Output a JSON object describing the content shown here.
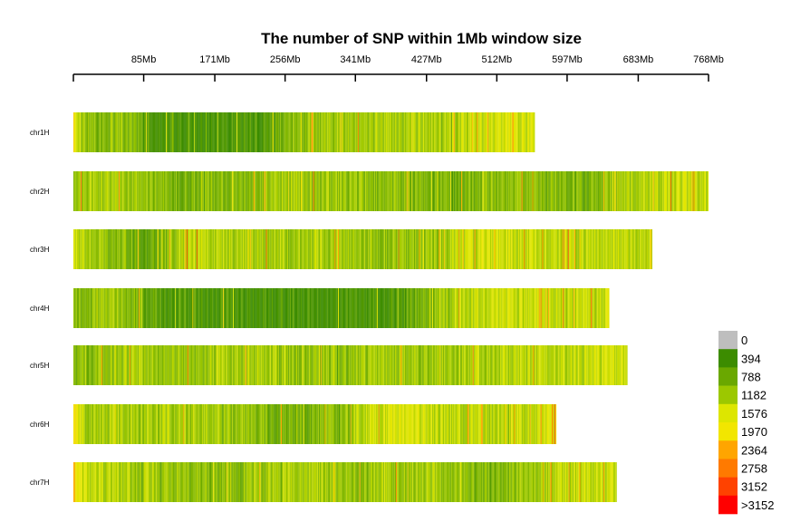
{
  "chart_data": {
    "type": "heatmap",
    "title": "The number of SNP within 1Mb window size",
    "x_axis": {
      "unit": "Mb",
      "range": [
        0,
        768
      ],
      "ticks": [
        {
          "value": 85,
          "label": "85Mb"
        },
        {
          "value": 171,
          "label": "171Mb"
        },
        {
          "value": 256,
          "label": "256Mb"
        },
        {
          "value": 341,
          "label": "341Mb"
        },
        {
          "value": 427,
          "label": "427Mb"
        },
        {
          "value": 512,
          "label": "512Mb"
        },
        {
          "value": 597,
          "label": "597Mb"
        },
        {
          "value": 683,
          "label": "683Mb"
        },
        {
          "value": 768,
          "label": "768Mb"
        }
      ]
    },
    "window_size_mb": 1,
    "chromosomes": [
      {
        "name": "chr1H",
        "length_mb": 558,
        "profile": [
          [
            0,
            1900
          ],
          [
            10,
            1180
          ],
          [
            30,
            1000
          ],
          [
            55,
            1180
          ],
          [
            100,
            400
          ],
          [
            170,
            420
          ],
          [
            230,
            560
          ],
          [
            265,
            1060
          ],
          [
            330,
            1180
          ],
          [
            420,
            1300
          ],
          [
            490,
            1400
          ],
          [
            510,
            1580
          ],
          [
            558,
            1500
          ]
        ]
      },
      {
        "name": "chr2H",
        "length_mb": 768,
        "profile": [
          [
            0,
            1200
          ],
          [
            60,
            1180
          ],
          [
            120,
            900
          ],
          [
            180,
            1000
          ],
          [
            260,
            1200
          ],
          [
            340,
            1100
          ],
          [
            410,
            980
          ],
          [
            460,
            800
          ],
          [
            500,
            1000
          ],
          [
            560,
            1060
          ],
          [
            620,
            900
          ],
          [
            690,
            1350
          ],
          [
            768,
            1450
          ]
        ]
      },
      {
        "name": "chr3H",
        "length_mb": 700,
        "profile": [
          [
            0,
            1500
          ],
          [
            20,
            1180
          ],
          [
            60,
            1000
          ],
          [
            90,
            700
          ],
          [
            110,
            1000
          ],
          [
            140,
            1400
          ],
          [
            200,
            1300
          ],
          [
            260,
            1200
          ],
          [
            320,
            1250
          ],
          [
            370,
            1100
          ],
          [
            420,
            1000
          ],
          [
            480,
            1450
          ],
          [
            530,
            1500
          ],
          [
            600,
            1350
          ],
          [
            700,
            1400
          ]
        ]
      },
      {
        "name": "chr4H",
        "length_mb": 648,
        "profile": [
          [
            0,
            1100
          ],
          [
            20,
            950
          ],
          [
            50,
            1300
          ],
          [
            90,
            700
          ],
          [
            140,
            500
          ],
          [
            300,
            420
          ],
          [
            380,
            520
          ],
          [
            430,
            900
          ],
          [
            460,
            1300
          ],
          [
            520,
            1500
          ],
          [
            600,
            1400
          ],
          [
            648,
            1500
          ]
        ]
      },
      {
        "name": "chr5H",
        "length_mb": 670,
        "profile": [
          [
            0,
            1000
          ],
          [
            60,
            1180
          ],
          [
            130,
            1100
          ],
          [
            200,
            1250
          ],
          [
            260,
            1150
          ],
          [
            320,
            1000
          ],
          [
            380,
            1200
          ],
          [
            440,
            1150
          ],
          [
            500,
            1300
          ],
          [
            580,
            1350
          ],
          [
            640,
            1450
          ],
          [
            670,
            1500
          ]
        ]
      },
      {
        "name": "chr6H",
        "length_mb": 584,
        "profile": [
          [
            0,
            2000
          ],
          [
            15,
            1200
          ],
          [
            60,
            1300
          ],
          [
            130,
            1250
          ],
          [
            200,
            1100
          ],
          [
            270,
            800
          ],
          [
            330,
            1050
          ],
          [
            360,
            1500
          ],
          [
            400,
            1650
          ],
          [
            440,
            1400
          ],
          [
            500,
            1300
          ],
          [
            560,
            1450
          ],
          [
            584,
            1600
          ]
        ]
      },
      {
        "name": "chr7H",
        "length_mb": 657,
        "profile": [
          [
            0,
            2300
          ],
          [
            12,
            1450
          ],
          [
            40,
            1300
          ],
          [
            100,
            1200
          ],
          [
            170,
            1000
          ],
          [
            230,
            1150
          ],
          [
            300,
            1250
          ],
          [
            360,
            1100
          ],
          [
            420,
            1300
          ],
          [
            470,
            1000
          ],
          [
            510,
            900
          ],
          [
            540,
            1150
          ],
          [
            600,
            1350
          ],
          [
            657,
            1500
          ]
        ]
      }
    ],
    "legend": {
      "position": "bottom-right",
      "items": [
        {
          "label": "0",
          "color": "#bebebe"
        },
        {
          "label": "394",
          "color": "#3c8c00"
        },
        {
          "label": "788",
          "color": "#6aa800"
        },
        {
          "label": "1182",
          "color": "#9cc800"
        },
        {
          "label": "1576",
          "color": "#dde600"
        },
        {
          "label": "1970",
          "color": "#f2e600"
        },
        {
          "label": "2364",
          "color": "#ffa500"
        },
        {
          "label": "2758",
          "color": "#ff7a00"
        },
        {
          "label": "3152",
          "color": "#ff4200"
        },
        {
          "label": ">3152",
          "color": "#ff0000"
        }
      ]
    }
  }
}
